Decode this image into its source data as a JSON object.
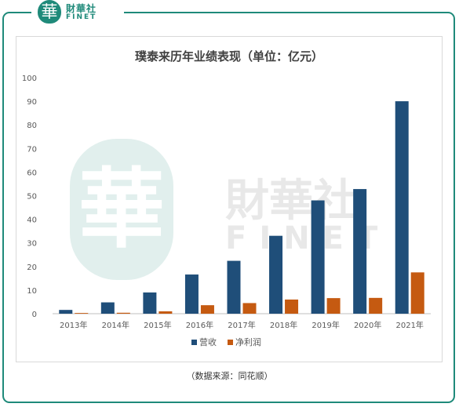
{
  "brand": {
    "mark": "華",
    "name_cn": "財華社",
    "name_en": "FINET"
  },
  "watermark": {
    "mark": "華",
    "name_cn": "財華社",
    "name_en": "FINET"
  },
  "source_note": "（数据来源：同花顺）",
  "colors": {
    "revenue": "#1f4e79",
    "profit": "#c55a11",
    "accent": "#1f8a7a"
  },
  "chart_data": {
    "type": "bar",
    "title": "璞泰来历年业绩表现（单位：亿元）",
    "categories": [
      "2013年",
      "2014年",
      "2015年",
      "2016年",
      "2017年",
      "2018年",
      "2019年",
      "2020年",
      "2021年"
    ],
    "series": [
      {
        "name": "营收",
        "values": [
          1.6,
          4.8,
          9.0,
          16.6,
          22.4,
          33.0,
          48.0,
          52.8,
          90.0
        ]
      },
      {
        "name": "净利润",
        "values": [
          0.3,
          0.4,
          1.0,
          3.6,
          4.5,
          6.0,
          6.6,
          6.7,
          17.5
        ]
      }
    ],
    "yticks": [
      0,
      10,
      20,
      30,
      40,
      50,
      60,
      70,
      80,
      90,
      100
    ],
    "ylim": [
      0,
      100
    ],
    "grid": false,
    "legend": "bottom"
  }
}
